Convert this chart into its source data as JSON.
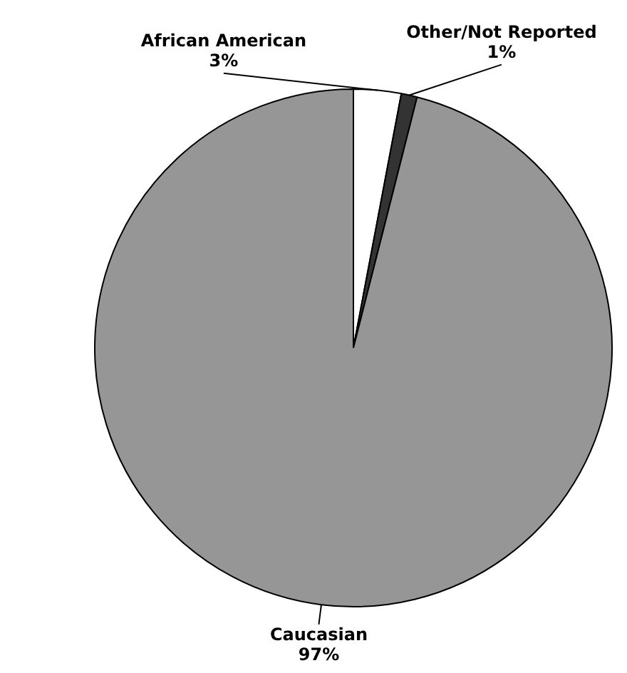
{
  "chart_data": {
    "type": "pie",
    "categories": [
      "African American",
      "Other/Not Reported",
      "Caucasian"
    ],
    "values": [
      3,
      1,
      97
    ],
    "value_labels": [
      "3%",
      "1%",
      "97%"
    ],
    "colors": [
      "#ffffff",
      "#333333",
      "#969696"
    ],
    "legend": false
  }
}
